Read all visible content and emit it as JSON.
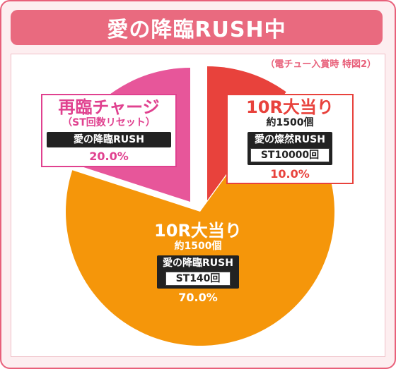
{
  "title": "愛の降臨RUSH中",
  "note": "（電チュー入賞時 特図2）",
  "colors": {
    "frame": "#e8607a",
    "title_bg": "#e96a7f",
    "slice_orange": "#f5960a",
    "slice_red": "#e8423c",
    "slice_pink": "#e7569a"
  },
  "chart_data": {
    "type": "pie",
    "slices": [
      {
        "value": 10.0,
        "label": "10R大当り",
        "sub": "約1500個",
        "mode": "愛の燦然RUSH",
        "st": "ST10000回",
        "percent_label": "10.0%",
        "color": "#e8423c"
      },
      {
        "value": 70.0,
        "label": "10R大当り",
        "sub": "約1500個",
        "mode": "愛の降臨RUSH",
        "st": "ST140回",
        "percent_label": "70.0%",
        "color": "#f5960a"
      },
      {
        "value": 20.0,
        "label": "再臨チャージ",
        "sub": "（ST回数リセット）",
        "mode": "愛の降臨RUSH",
        "percent_label": "20.0%",
        "color": "#e7569a"
      }
    ]
  }
}
